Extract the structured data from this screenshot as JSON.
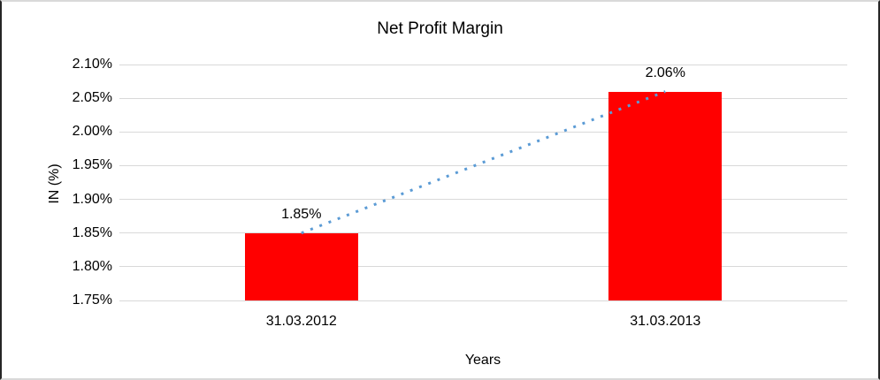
{
  "window": {
    "background": "#ffffff",
    "border_dark": "#262626",
    "border_light": "#d9d9d9"
  },
  "chart_data": {
    "type": "bar",
    "title": "Net Profit Margin",
    "categories": [
      "31.03.2012",
      "31.03.2013"
    ],
    "values": [
      1.85,
      2.06
    ],
    "data_labels": [
      "1.85%",
      "2.06%"
    ],
    "xlabel": "Years",
    "ylabel": "IN (%)",
    "ylim": [
      1.75,
      2.1
    ],
    "ytick_step": 0.05,
    "ytick_labels": [
      "2.10%",
      "2.05%",
      "2.00%",
      "1.95%",
      "1.90%",
      "1.85%",
      "1.80%",
      "1.75%"
    ],
    "grid": true,
    "legend": "none",
    "bar_color": "#ff0000",
    "gridline_color": "#d9d9d9",
    "trendline": {
      "type": "linear",
      "style": "dotted",
      "color": "#5b9bd5"
    }
  }
}
